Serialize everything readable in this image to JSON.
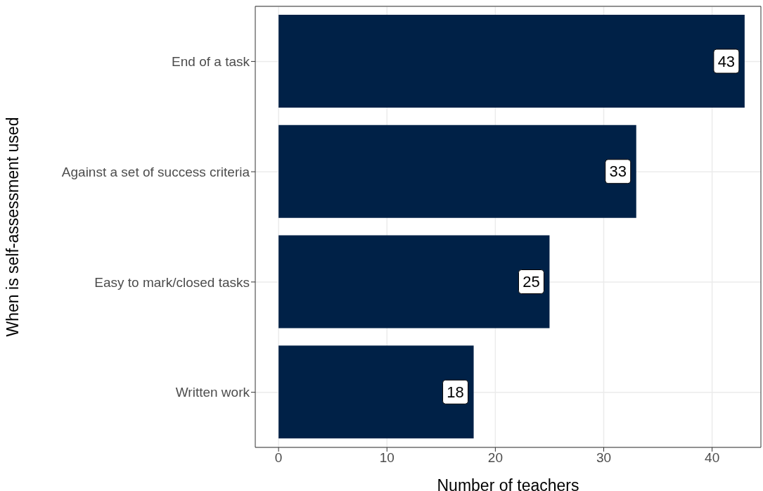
{
  "chart_data": {
    "type": "bar",
    "orientation": "horizontal",
    "xlabel": "Number of teachers",
    "ylabel": "When is self-assessment used",
    "categories": [
      "End of a task",
      "Against a set of success criteria",
      "Easy to mark/closed tasks",
      "Written work"
    ],
    "values": [
      43,
      33,
      25,
      18
    ],
    "color": "#002147",
    "data_labels": true,
    "xlim": [
      -2.15,
      44.5
    ],
    "xticks": [
      0,
      10,
      20,
      30,
      40
    ],
    "grid": true
  }
}
